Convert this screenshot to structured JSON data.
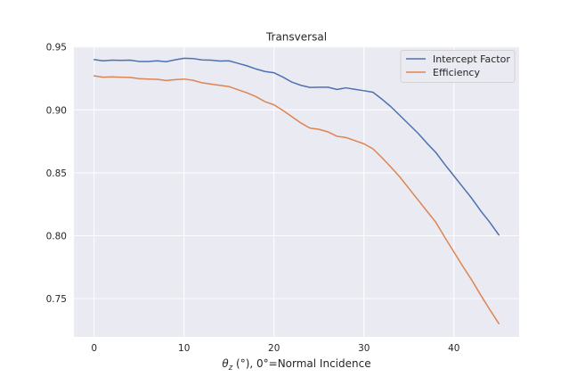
{
  "chart_data": {
    "type": "line",
    "title": "Transversal",
    "xlabel_prefix": "θ",
    "xlabel_sub": "z",
    "xlabel_suffix": " (°), 0°=Normal Incidence",
    "ylabel": "",
    "xlim": [
      -2.25,
      47.25
    ],
    "ylim": [
      0.7195,
      0.9505
    ],
    "x_ticks": [
      0,
      10,
      20,
      30,
      40
    ],
    "y_ticks": [
      0.75,
      0.8,
      0.85,
      0.9,
      0.95
    ],
    "y_tick_labels": [
      "0.75",
      "0.80",
      "0.85",
      "0.90",
      "0.95"
    ],
    "grid": true,
    "legend_position": "top-right",
    "x": [
      0,
      1,
      2,
      3,
      4,
      5,
      6,
      7,
      8,
      9,
      10,
      11,
      12,
      13,
      14,
      15,
      16,
      17,
      18,
      19,
      20,
      21,
      22,
      23,
      24,
      25,
      26,
      27,
      28,
      29,
      30,
      31,
      32,
      33,
      34,
      35,
      36,
      37,
      38,
      39,
      40,
      41,
      42,
      43,
      44,
      45
    ],
    "series": [
      {
        "name": "Intercept Factor",
        "color": "#4c72b0",
        "values": [
          0.94,
          0.939,
          0.9395,
          0.9393,
          0.9395,
          0.9385,
          0.9385,
          0.939,
          0.9383,
          0.9398,
          0.941,
          0.9408,
          0.9397,
          0.9395,
          0.9388,
          0.939,
          0.937,
          0.935,
          0.9325,
          0.9305,
          0.9295,
          0.926,
          0.922,
          0.9195,
          0.9178,
          0.918,
          0.918,
          0.9162,
          0.9175,
          0.9163,
          0.9152,
          0.914,
          0.9085,
          0.9025,
          0.8955,
          0.8885,
          0.8815,
          0.8735,
          0.866,
          0.8565,
          0.8475,
          0.8385,
          0.8295,
          0.8195,
          0.8105,
          0.8005
        ]
      },
      {
        "name": "Efficiency",
        "color": "#dd8452",
        "values": [
          0.927,
          0.926,
          0.9262,
          0.926,
          0.9258,
          0.9248,
          0.9245,
          0.9243,
          0.9233,
          0.924,
          0.9245,
          0.9235,
          0.9215,
          0.9205,
          0.9195,
          0.9185,
          0.916,
          0.9135,
          0.9105,
          0.9065,
          0.904,
          0.8995,
          0.8945,
          0.8895,
          0.8855,
          0.8845,
          0.8825,
          0.879,
          0.878,
          0.8755,
          0.873,
          0.869,
          0.862,
          0.8545,
          0.8465,
          0.8375,
          0.8285,
          0.8195,
          0.8105,
          0.7985,
          0.787,
          0.7755,
          0.7645,
          0.7525,
          0.741,
          0.73
        ]
      }
    ]
  }
}
